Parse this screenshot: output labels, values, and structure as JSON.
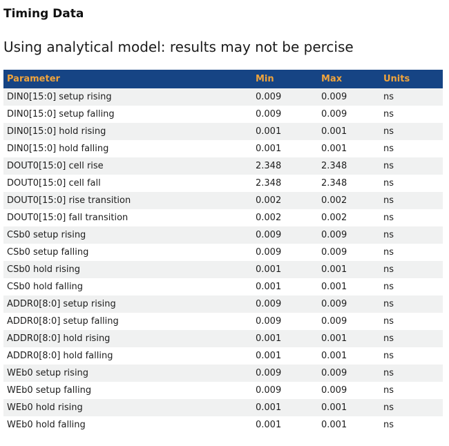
{
  "page": {
    "title": "Timing Data",
    "subtitle": "Using analytical model: results may not be percise"
  },
  "table": {
    "columns": {
      "parameter": "Parameter",
      "min": "Min",
      "max": "Max",
      "units": "Units"
    },
    "rows": [
      {
        "parameter": "DIN0[15:0] setup rising",
        "min": "0.009",
        "max": "0.009",
        "units": "ns"
      },
      {
        "parameter": "DIN0[15:0] setup falling",
        "min": "0.009",
        "max": "0.009",
        "units": "ns"
      },
      {
        "parameter": "DIN0[15:0] hold rising",
        "min": "0.001",
        "max": "0.001",
        "units": "ns"
      },
      {
        "parameter": "DIN0[15:0] hold falling",
        "min": "0.001",
        "max": "0.001",
        "units": "ns"
      },
      {
        "parameter": "DOUT0[15:0] cell rise",
        "min": "2.348",
        "max": "2.348",
        "units": "ns"
      },
      {
        "parameter": "DOUT0[15:0] cell fall",
        "min": "2.348",
        "max": "2.348",
        "units": "ns"
      },
      {
        "parameter": "DOUT0[15:0] rise transition",
        "min": "0.002",
        "max": "0.002",
        "units": "ns"
      },
      {
        "parameter": "DOUT0[15:0] fall transition",
        "min": "0.002",
        "max": "0.002",
        "units": "ns"
      },
      {
        "parameter": "CSb0 setup rising",
        "min": "0.009",
        "max": "0.009",
        "units": "ns"
      },
      {
        "parameter": "CSb0 setup falling",
        "min": "0.009",
        "max": "0.009",
        "units": "ns"
      },
      {
        "parameter": "CSb0 hold rising",
        "min": "0.001",
        "max": "0.001",
        "units": "ns"
      },
      {
        "parameter": "CSb0 hold falling",
        "min": "0.001",
        "max": "0.001",
        "units": "ns"
      },
      {
        "parameter": "ADDR0[8:0] setup rising",
        "min": "0.009",
        "max": "0.009",
        "units": "ns"
      },
      {
        "parameter": "ADDR0[8:0] setup falling",
        "min": "0.009",
        "max": "0.009",
        "units": "ns"
      },
      {
        "parameter": "ADDR0[8:0] hold rising",
        "min": "0.001",
        "max": "0.001",
        "units": "ns"
      },
      {
        "parameter": "ADDR0[8:0] hold falling",
        "min": "0.001",
        "max": "0.001",
        "units": "ns"
      },
      {
        "parameter": "WEb0 setup rising",
        "min": "0.009",
        "max": "0.009",
        "units": "ns"
      },
      {
        "parameter": "WEb0 setup falling",
        "min": "0.009",
        "max": "0.009",
        "units": "ns"
      },
      {
        "parameter": "WEb0 hold rising",
        "min": "0.001",
        "max": "0.001",
        "units": "ns"
      },
      {
        "parameter": "WEb0 hold falling",
        "min": "0.001",
        "max": "0.001",
        "units": "ns"
      }
    ]
  },
  "colors": {
    "header_bg": "#164484",
    "header_text": "#F0A43C",
    "row_stripe": "#F0F1F1"
  }
}
